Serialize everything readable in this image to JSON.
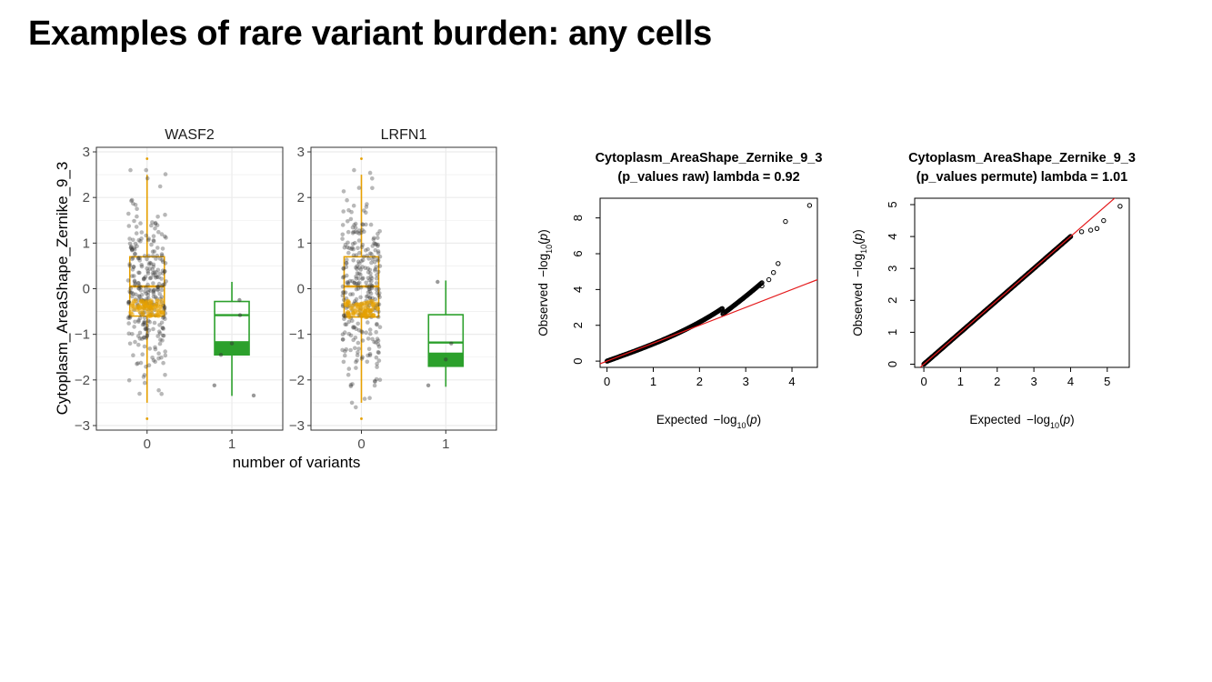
{
  "slide": {
    "title": "Examples of rare variant burden: any cells"
  },
  "colors": {
    "zero_variants": "#E6A000",
    "one_variant": "#2CA02C",
    "points": "#333333",
    "reference_line": "#E41A1C",
    "grid": "#EBEBEB"
  },
  "chart_data": [
    {
      "type": "box",
      "ylabel": "Cytoplasm_AreaShape_Zernike_9_3",
      "xlabel": "number of variants",
      "categories": [
        "0",
        "1"
      ],
      "ylim": [
        -3.1,
        3.1
      ],
      "yticks": [
        3,
        2,
        1,
        0,
        -1,
        -2,
        -3
      ],
      "ytick_labels": [
        "3",
        "2",
        "1",
        "0",
        "−1",
        "−2",
        "−3"
      ],
      "grid": true,
      "facets": [
        {
          "label": "WASF2",
          "groups": [
            {
              "category": "0",
              "whisker_low": -2.5,
              "q1": -0.6,
              "median": 0.05,
              "q3": 0.7,
              "whisker_high": 2.5,
              "outliers": [
                2.85,
                -2.85
              ],
              "n_points": 300
            },
            {
              "category": "1",
              "whisker_low": -2.35,
              "q1": -1.45,
              "median": -0.58,
              "q3": -0.28,
              "whisker_high": 0.15,
              "outliers": [],
              "n_points": 6
            }
          ]
        },
        {
          "label": "LRFN1",
          "groups": [
            {
              "category": "0",
              "whisker_low": -2.5,
              "q1": -0.62,
              "median": 0.05,
              "q3": 0.7,
              "whisker_high": 2.5,
              "outliers": [
                2.85,
                -2.85
              ],
              "n_points": 300
            },
            {
              "category": "1",
              "whisker_low": -2.15,
              "q1": -1.7,
              "median": -1.18,
              "q3": -0.57,
              "whisker_high": 0.18,
              "outliers": [],
              "n_points": 4
            }
          ]
        }
      ]
    },
    {
      "type": "scatter",
      "title": "Cytoplasm_AreaShape_Zernike_9_3\n(p_values raw) lambda = 0.92",
      "title_lines": [
        "Cytoplasm_AreaShape_Zernike_9_3",
        "(p_values raw) lambda = 0.92"
      ],
      "xlabel": "Expected −log10(p)",
      "ylabel": "Observed −log10(p)",
      "xlim": [
        -0.15,
        4.55
      ],
      "ylim": [
        -0.35,
        9.1
      ],
      "xticks": [
        0,
        1,
        2,
        3,
        4
      ],
      "yticks": [
        0,
        2,
        4,
        6,
        8
      ],
      "n_points": 19000,
      "lambda": 0.92,
      "tail_points": [
        [
          3.35,
          4.2
        ],
        [
          3.5,
          4.55
        ],
        [
          3.6,
          4.95
        ],
        [
          3.7,
          5.45
        ],
        [
          3.86,
          7.8
        ],
        [
          4.38,
          8.7
        ]
      ],
      "reference_line": {
        "slope": 1,
        "intercept": 0
      }
    },
    {
      "type": "scatter",
      "title": "Cytoplasm_AreaShape_Zernike_9_3\n(p_values permute) lambda = 1.01",
      "title_lines": [
        "Cytoplasm_AreaShape_Zernike_9_3",
        "(p_values permute) lambda = 1.01"
      ],
      "xlabel": "Expected −log10(p)",
      "ylabel": "Observed −log10(p)",
      "xlim": [
        -0.25,
        5.6
      ],
      "ylim": [
        -0.1,
        5.2
      ],
      "xticks": [
        0,
        1,
        2,
        3,
        4,
        5
      ],
      "yticks": [
        0,
        1,
        2,
        3,
        4,
        5
      ],
      "n_points": 190000,
      "lambda": 1.01,
      "tail_points": [
        [
          4.0,
          4.0
        ],
        [
          4.3,
          4.15
        ],
        [
          4.55,
          4.2
        ],
        [
          4.72,
          4.25
        ],
        [
          4.9,
          4.5
        ],
        [
          5.35,
          4.95
        ]
      ],
      "reference_line": {
        "slope": 1,
        "intercept": 0
      }
    }
  ]
}
